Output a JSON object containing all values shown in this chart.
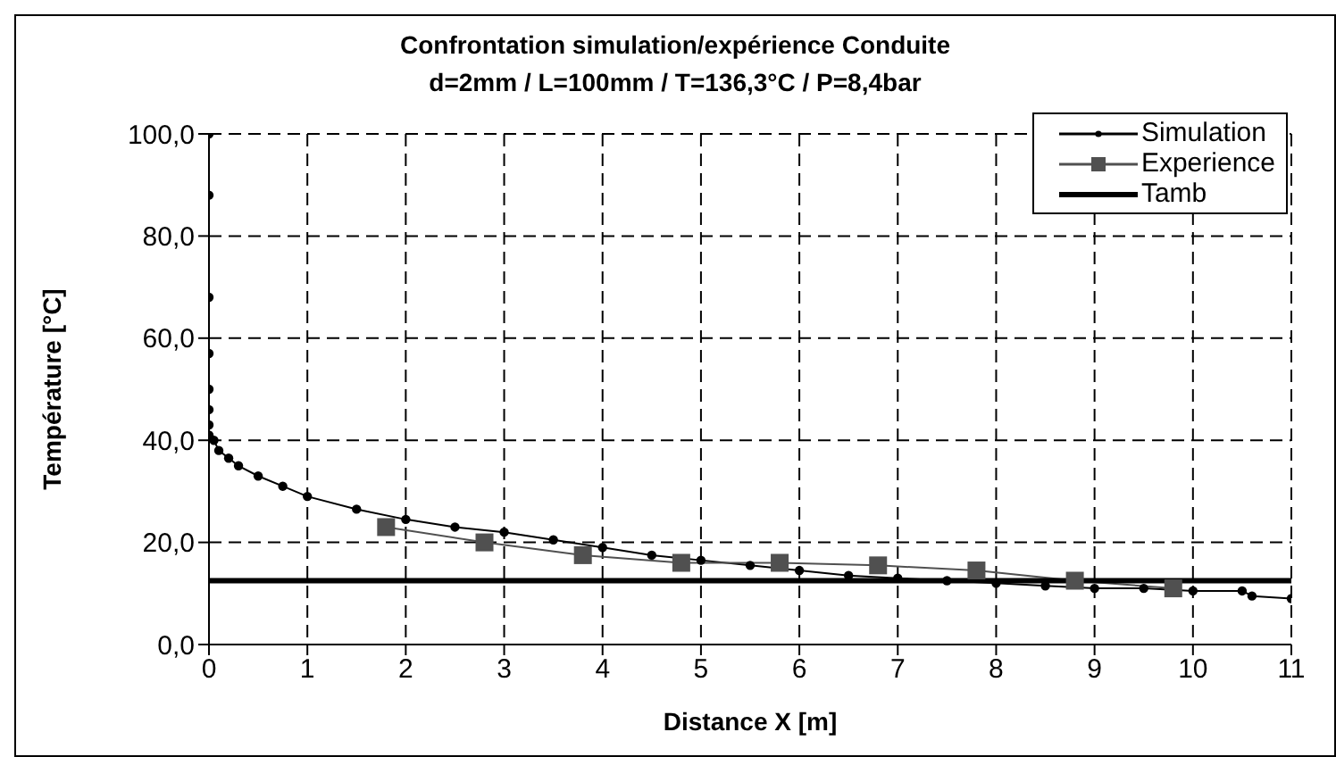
{
  "chart_data": {
    "type": "line",
    "title": "Confrontation simulation/expérience Conduite",
    "subtitle": "d=2mm / L=100mm / T=136,3°C / P=8,4bar",
    "xlabel": "Distance X [m]",
    "ylabel": "Température [°C]",
    "xlim": [
      0,
      11
    ],
    "xticks": [
      0,
      1,
      2,
      3,
      4,
      5,
      6,
      7,
      8,
      9,
      10,
      11
    ],
    "ylim": [
      0,
      100
    ],
    "yticks": [
      {
        "value": 0,
        "label": "0,0"
      },
      {
        "value": 20,
        "label": "20,0"
      },
      {
        "value": 40,
        "label": "40,0"
      },
      {
        "value": 60,
        "label": "60,0"
      },
      {
        "value": 80,
        "label": "80,0"
      },
      {
        "value": 100,
        "label": "100,0"
      }
    ],
    "grid": true,
    "legend": "top right",
    "series": [
      {
        "name": "Simulation",
        "color": "#000000",
        "marker": "circle",
        "x": [
          0,
          0,
          0,
          0,
          0,
          0,
          0,
          0,
          0.05,
          0.1,
          0.2,
          0.3,
          0.5,
          0.75,
          1,
          1.5,
          2,
          2.5,
          3,
          3.5,
          4,
          4.5,
          5,
          5.5,
          6,
          6.5,
          7,
          7.5,
          8,
          8.5,
          9,
          9.5,
          10,
          10.5,
          10.6,
          11
        ],
        "values": [
          100,
          88,
          68,
          57,
          50,
          46,
          43,
          41,
          40,
          38,
          36.5,
          35,
          33,
          31,
          29,
          26.5,
          24.5,
          23,
          22,
          20.5,
          19,
          17.5,
          16.5,
          15.5,
          14.5,
          13.5,
          13,
          12.5,
          12,
          11.5,
          11,
          11,
          10.5,
          10.5,
          9.5,
          9
        ]
      },
      {
        "name": "Experience",
        "color": "#505050",
        "marker": "square",
        "x": [
          1.8,
          2.8,
          3.8,
          4.8,
          5.8,
          6.8,
          7.8,
          8.8,
          9.8
        ],
        "values": [
          23,
          20,
          17.5,
          16,
          16,
          15.5,
          14.5,
          12.5,
          11
        ]
      },
      {
        "name": "Tamb",
        "color": "#000000",
        "marker": "none",
        "x": [
          0,
          11
        ],
        "values": [
          12.5,
          12.5
        ]
      }
    ]
  }
}
